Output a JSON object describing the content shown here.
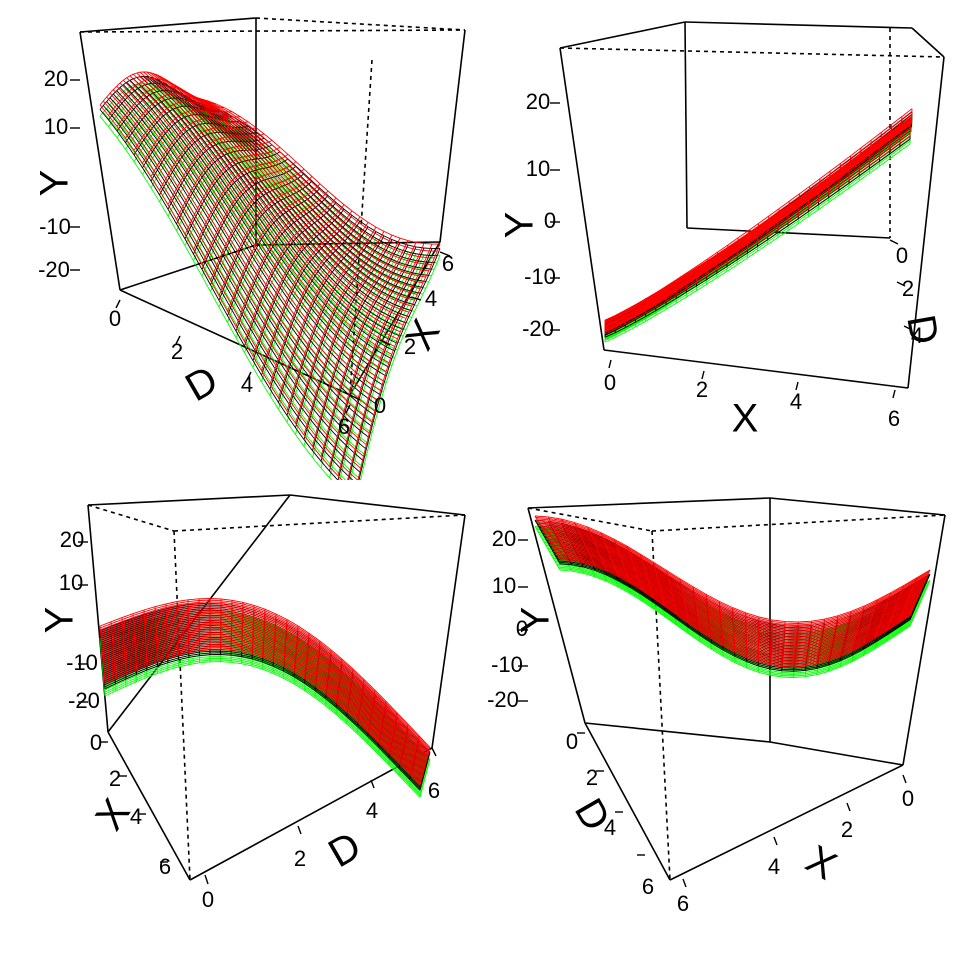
{
  "chart_data": [
    {
      "type": "surface",
      "panel": "top-left",
      "axes": {
        "x": "D",
        "y": "X",
        "z": "Y"
      },
      "xlim": [
        0,
        6
      ],
      "ylim": [
        0,
        6
      ],
      "zlim": [
        -28,
        28
      ],
      "x_ticks": [
        "0",
        "2",
        "4",
        "6"
      ],
      "y_ticks": [
        "0",
        "2",
        "4",
        "6"
      ],
      "z_ticks": [
        "20",
        "10",
        "-10",
        "-20"
      ],
      "series": [
        {
          "color": "#00ff00",
          "offset": -2.5
        },
        {
          "color": "#000000",
          "offset": -1.0
        },
        {
          "color": "#ff0000",
          "offset": 0
        }
      ]
    },
    {
      "type": "surface",
      "panel": "top-right",
      "axes": {
        "x": "X",
        "y": "D",
        "z": "Y"
      },
      "xlim": [
        0,
        6
      ],
      "ylim": [
        0,
        6
      ],
      "zlim": [
        -28,
        28
      ],
      "x_ticks": [
        "0",
        "2",
        "4",
        "6"
      ],
      "y_ticks": [
        "0",
        "2",
        "4"
      ],
      "z_ticks": [
        "20",
        "10",
        "0",
        "-10",
        "-20"
      ],
      "series": [
        {
          "color": "#00ff00",
          "offset": -2.5
        },
        {
          "color": "#000000",
          "offset": -1.0
        },
        {
          "color": "#ff0000",
          "offset": 0
        }
      ]
    },
    {
      "type": "surface",
      "panel": "bottom-left",
      "axes": {
        "x": "D",
        "y": "X",
        "z": "Y"
      },
      "xlim": [
        0,
        6
      ],
      "ylim": [
        0,
        6
      ],
      "zlim": [
        -28,
        28
      ],
      "x_ticks": [
        "0",
        "2",
        "4",
        "6"
      ],
      "y_ticks": [
        "0",
        "2",
        "4",
        "6"
      ],
      "z_ticks": [
        "20",
        "10",
        "-10",
        "-20"
      ],
      "series": [
        {
          "color": "#00ff00",
          "offset": -2.5
        },
        {
          "color": "#000000",
          "offset": -1.0
        },
        {
          "color": "#ff0000",
          "offset": 0
        }
      ]
    },
    {
      "type": "surface",
      "panel": "bottom-right",
      "axes": {
        "x": "X",
        "y": "D",
        "z": "Y"
      },
      "xlim": [
        0,
        6
      ],
      "ylim": [
        0,
        6
      ],
      "zlim": [
        -28,
        28
      ],
      "x_ticks": [
        "0",
        "2",
        "4",
        "6"
      ],
      "y_ticks": [
        "0",
        "2",
        "4",
        "6"
      ],
      "z_ticks": [
        "20",
        "10",
        "0",
        "-10",
        "-20"
      ],
      "series": [
        {
          "color": "#00ff00",
          "offset": -2.5
        },
        {
          "color": "#000000",
          "offset": -1.0
        },
        {
          "color": "#ff0000",
          "offset": 0
        }
      ]
    }
  ]
}
